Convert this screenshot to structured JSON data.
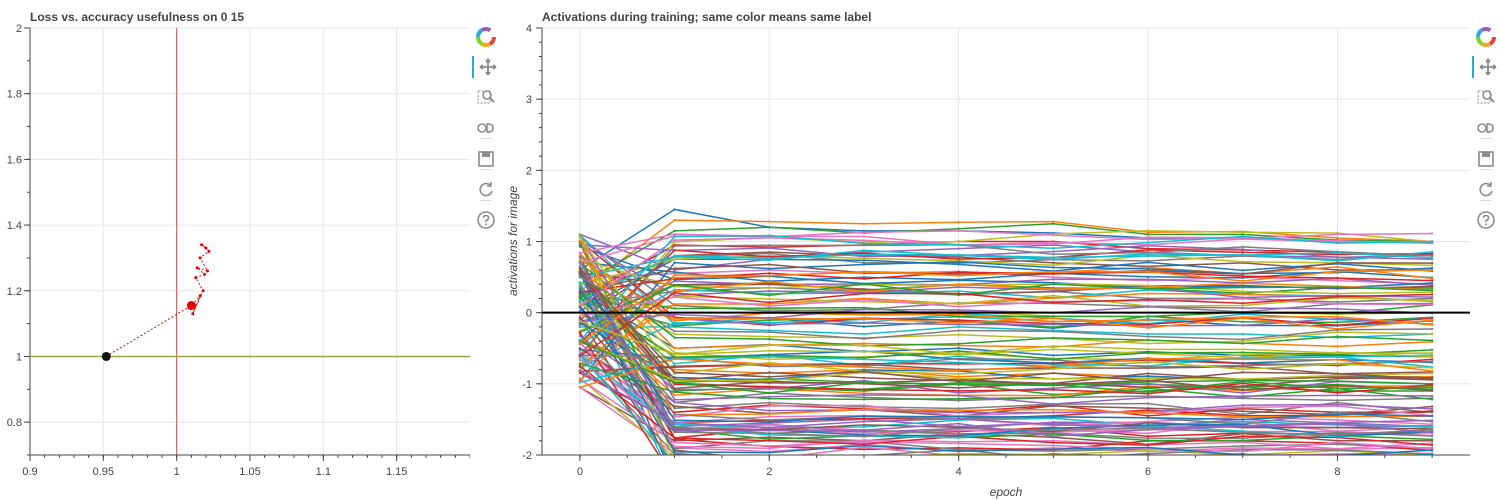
{
  "colors": {
    "loss_trajectory": "#e00000",
    "vertical_line": "#d05050",
    "horizontal_line": "#9aa84a",
    "start_point": "#111111",
    "zero_line": "#000000",
    "bokeh_accent": "#26aae1",
    "palette": [
      "#1f77b4",
      "#ff7f0e",
      "#2ca02c",
      "#d62728",
      "#9467bd",
      "#8c564b",
      "#e377c2",
      "#7f7f7f",
      "#bcbd22",
      "#17becf"
    ]
  },
  "toolbar": {
    "tools": [
      {
        "name": "bokeh-logo-icon"
      },
      {
        "name": "pan-tool-icon"
      },
      {
        "name": "box-zoom-tool-icon"
      },
      {
        "name": "wheel-zoom-tool-icon"
      },
      {
        "name": "save-tool-icon"
      },
      {
        "name": "reset-tool-icon"
      },
      {
        "name": "help-tool-icon"
      }
    ]
  },
  "chart_data": [
    {
      "type": "line",
      "title": "Loss vs. accuracy usefulness on 0 15",
      "xlabel": "",
      "ylabel": "",
      "xlim": [
        0.9,
        1.2
      ],
      "ylim": [
        0.7,
        2.0
      ],
      "x_ticks": [
        "0.9",
        "0.95",
        "1",
        "1.05",
        "1.1",
        "1.15"
      ],
      "y_ticks": [
        "0.8",
        "1",
        "1.2",
        "1.4",
        "1.6",
        "1.8",
        "2"
      ],
      "grid": true,
      "reference_lines": {
        "vertical_x": 1.0,
        "horizontal_y": 1.0
      },
      "start_point": {
        "x": 0.952,
        "y": 1.0
      },
      "end_point": {
        "x": 1.01,
        "y": 1.155
      },
      "trajectory": {
        "x": [
          0.952,
          1.01,
          1.016,
          1.011,
          1.018,
          1.013,
          1.019,
          1.014,
          1.021,
          1.016,
          1.022,
          1.017,
          1.02
        ],
        "y": [
          1.0,
          1.155,
          1.185,
          1.13,
          1.2,
          1.24,
          1.25,
          1.27,
          1.26,
          1.3,
          1.32,
          1.34,
          1.33
        ]
      }
    },
    {
      "type": "line",
      "title": "Activations during training; same color means same label",
      "xlabel": "epoch",
      "ylabel": "activations for image",
      "xlim": [
        -0.4,
        9.4
      ],
      "ylim": [
        -2,
        4
      ],
      "x_ticks": [
        "0",
        "2",
        "4",
        "6",
        "8"
      ],
      "y_ticks": [
        "-2",
        "-1",
        "0",
        "1",
        "2",
        "3",
        "4"
      ],
      "grid": true,
      "zero_line_y": 0,
      "epochs": [
        0,
        1,
        2,
        3,
        4,
        5,
        6,
        7,
        8,
        9
      ],
      "series_count": 130,
      "final_value_range": [
        -2,
        1.05
      ],
      "initial_value_range": [
        -1.05,
        1.1
      ],
      "series": [
        {
          "values": [
            0.6,
            1.45,
            1.2,
            1.15,
            1.15,
            1.12,
            1.05,
            1.05,
            1.0,
            0.98
          ]
        },
        {
          "values": [
            0.3,
            1.3,
            1.28,
            1.25,
            1.27,
            1.28,
            1.13,
            1.14,
            1.05,
            1.0
          ]
        },
        {
          "values": [
            0.4,
            1.15,
            1.2,
            1.12,
            1.18,
            1.25,
            1.1,
            1.1,
            1.02,
            1.0
          ]
        },
        {
          "values": [
            0.2,
            0.95,
            0.92,
            0.95,
            1.0,
            1.0,
            0.9,
            0.88,
            0.85,
            0.8
          ]
        },
        {
          "values": [
            1.1,
            0.6,
            0.75,
            0.85,
            0.9,
            0.95,
            0.85,
            0.8,
            0.78,
            0.75
          ]
        },
        {
          "values": [
            -0.1,
            0.8,
            0.85,
            0.8,
            0.78,
            0.7,
            0.65,
            0.7,
            0.6,
            0.6
          ]
        },
        {
          "values": [
            0.5,
            0.55,
            0.6,
            0.55,
            0.58,
            0.5,
            0.45,
            0.5,
            0.45,
            0.4
          ]
        },
        {
          "values": [
            0.1,
            0.3,
            0.35,
            0.3,
            0.25,
            0.3,
            0.2,
            0.2,
            0.15,
            0.2
          ]
        },
        {
          "values": [
            0.0,
            0.1,
            0.05,
            0.0,
            0.02,
            -0.05,
            -0.05,
            0.0,
            -0.02,
            0.0
          ]
        },
        {
          "values": [
            -0.2,
            -0.2,
            -0.25,
            -0.3,
            -0.2,
            -0.25,
            -0.3,
            -0.3,
            -0.35,
            -0.3
          ]
        },
        {
          "values": [
            0.3,
            -0.5,
            -0.45,
            -0.55,
            -0.5,
            -0.6,
            -0.55,
            -0.6,
            -0.6,
            -0.62
          ]
        },
        {
          "values": [
            -0.4,
            -0.8,
            -0.85,
            -0.8,
            -0.9,
            -0.85,
            -0.9,
            -0.95,
            -0.9,
            -0.9
          ]
        },
        {
          "values": [
            0.2,
            -1.1,
            -1.05,
            -1.1,
            -1.0,
            -1.15,
            -1.1,
            -1.05,
            -1.1,
            -1.1
          ]
        },
        {
          "values": [
            -0.5,
            -1.4,
            -1.3,
            -1.35,
            -1.4,
            -1.3,
            -1.45,
            -1.35,
            -1.4,
            -1.4
          ]
        },
        {
          "values": [
            0.1,
            -1.6,
            -1.55,
            -1.5,
            -1.6,
            -1.55,
            -1.6,
            -1.5,
            -1.55,
            -1.6
          ]
        },
        {
          "values": [
            -1.05,
            -1.8,
            -1.75,
            -1.8,
            -1.7,
            -1.75,
            -1.85,
            -1.7,
            -1.8,
            -1.8
          ]
        },
        {
          "values": [
            0.4,
            -1.9,
            -1.95,
            -1.85,
            -1.95,
            -1.9,
            -1.95,
            -1.9,
            -1.92,
            -1.9
          ]
        }
      ]
    }
  ]
}
